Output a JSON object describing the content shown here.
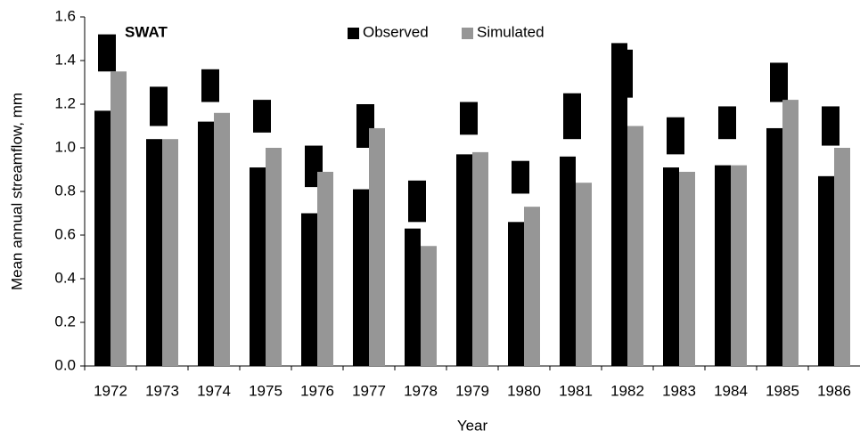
{
  "chart_data": {
    "type": "bar",
    "annotation": "SWAT",
    "x_label": "Year",
    "y_label": "Mean annual streamflow, mm",
    "categories": [
      "1972",
      "1973",
      "1974",
      "1975",
      "1976",
      "1977",
      "1978",
      "1979",
      "1980",
      "1981",
      "1982",
      "1983",
      "1984",
      "1985",
      "1986"
    ],
    "series": [
      {
        "name": "Observed",
        "color": "#000000",
        "values": [
          1.17,
          1.04,
          1.12,
          0.91,
          0.7,
          0.81,
          0.63,
          0.97,
          0.66,
          0.96,
          1.48,
          0.91,
          0.92,
          1.09,
          0.87
        ],
        "ranges": [
          [
            1.35,
            1.52
          ],
          [
            1.1,
            1.28
          ],
          [
            1.21,
            1.36
          ],
          [
            1.07,
            1.22
          ],
          [
            0.82,
            1.01
          ],
          [
            1.0,
            1.2
          ],
          [
            0.66,
            0.85
          ],
          [
            1.06,
            1.21
          ],
          [
            0.79,
            0.94
          ],
          [
            1.04,
            1.25
          ],
          [
            1.23,
            1.45
          ],
          [
            0.97,
            1.14
          ],
          [
            1.04,
            1.19
          ],
          [
            1.21,
            1.39
          ],
          [
            1.01,
            1.19
          ]
        ]
      },
      {
        "name": "Simulated",
        "color": "#969696",
        "values": [
          1.35,
          1.04,
          1.16,
          1.0,
          0.89,
          1.09,
          0.55,
          0.98,
          0.73,
          0.84,
          1.1,
          0.89,
          0.92,
          1.22,
          1.0
        ]
      }
    ],
    "ylim": [
      0,
      1.6
    ],
    "yticks": [
      {
        "value": 0,
        "label": "0.0"
      },
      {
        "value": 0.2,
        "label": "0.2"
      },
      {
        "value": 0.4,
        "label": "0.4"
      },
      {
        "value": 0.6,
        "label": "0.6"
      },
      {
        "value": 0.8,
        "label": "0.8"
      },
      {
        "value": 1,
        "label": "1.0"
      },
      {
        "value": 1.2,
        "label": "1.2"
      },
      {
        "value": 1.4,
        "label": "1.4"
      },
      {
        "value": 1.6,
        "label": "1.6"
      }
    ],
    "grid": false
  }
}
